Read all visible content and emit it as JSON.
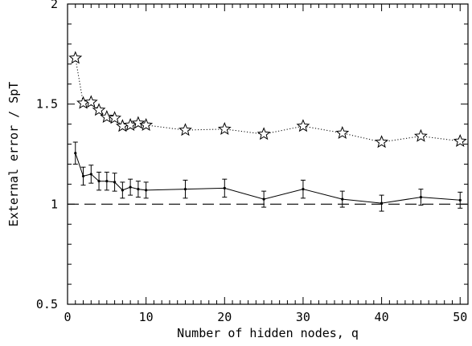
{
  "chart_data": {
    "type": "line",
    "title": "",
    "xlabel": "Number of hidden nodes, q",
    "ylabel": "External error / SpT",
    "xlim": [
      0,
      51
    ],
    "ylim": [
      0.5,
      2
    ],
    "xticks": [
      0,
      10,
      20,
      30,
      40,
      50
    ],
    "yticks": [
      0.5,
      1,
      1.5,
      2
    ],
    "ytick_labels": [
      "0.5",
      "1",
      "1.5",
      "2"
    ],
    "grid": false,
    "legend": "none",
    "series": [
      {
        "marker": "star",
        "linestyle": "dotted",
        "x": [
          1,
          2,
          3,
          4,
          5,
          6,
          7,
          8,
          9,
          10,
          15,
          20,
          25,
          30,
          35,
          40,
          45,
          50
        ],
        "y": [
          1.73,
          1.505,
          1.51,
          1.47,
          1.435,
          1.43,
          1.39,
          1.395,
          1.405,
          1.395,
          1.37,
          1.375,
          1.35,
          1.39,
          1.355,
          1.31,
          1.34,
          1.315
        ]
      },
      {
        "marker": "dot",
        "linestyle": "solid",
        "x": [
          1,
          2,
          3,
          4,
          5,
          6,
          7,
          8,
          9,
          10,
          15,
          20,
          25,
          30,
          35,
          40,
          45,
          50
        ],
        "y": [
          1.255,
          1.14,
          1.15,
          1.115,
          1.115,
          1.11,
          1.07,
          1.085,
          1.075,
          1.07,
          1.075,
          1.08,
          1.025,
          1.075,
          1.025,
          1.005,
          1.035,
          1.02
        ],
        "err": [
          0.055,
          0.045,
          0.045,
          0.045,
          0.045,
          0.045,
          0.04,
          0.04,
          0.04,
          0.04,
          0.045,
          0.045,
          0.04,
          0.045,
          0.04,
          0.04,
          0.04,
          0.04
        ]
      }
    ],
    "reference_line": {
      "y": 1,
      "linestyle": "dashed"
    },
    "colors": {
      "line": "#000000",
      "background": "#ffffff"
    }
  }
}
